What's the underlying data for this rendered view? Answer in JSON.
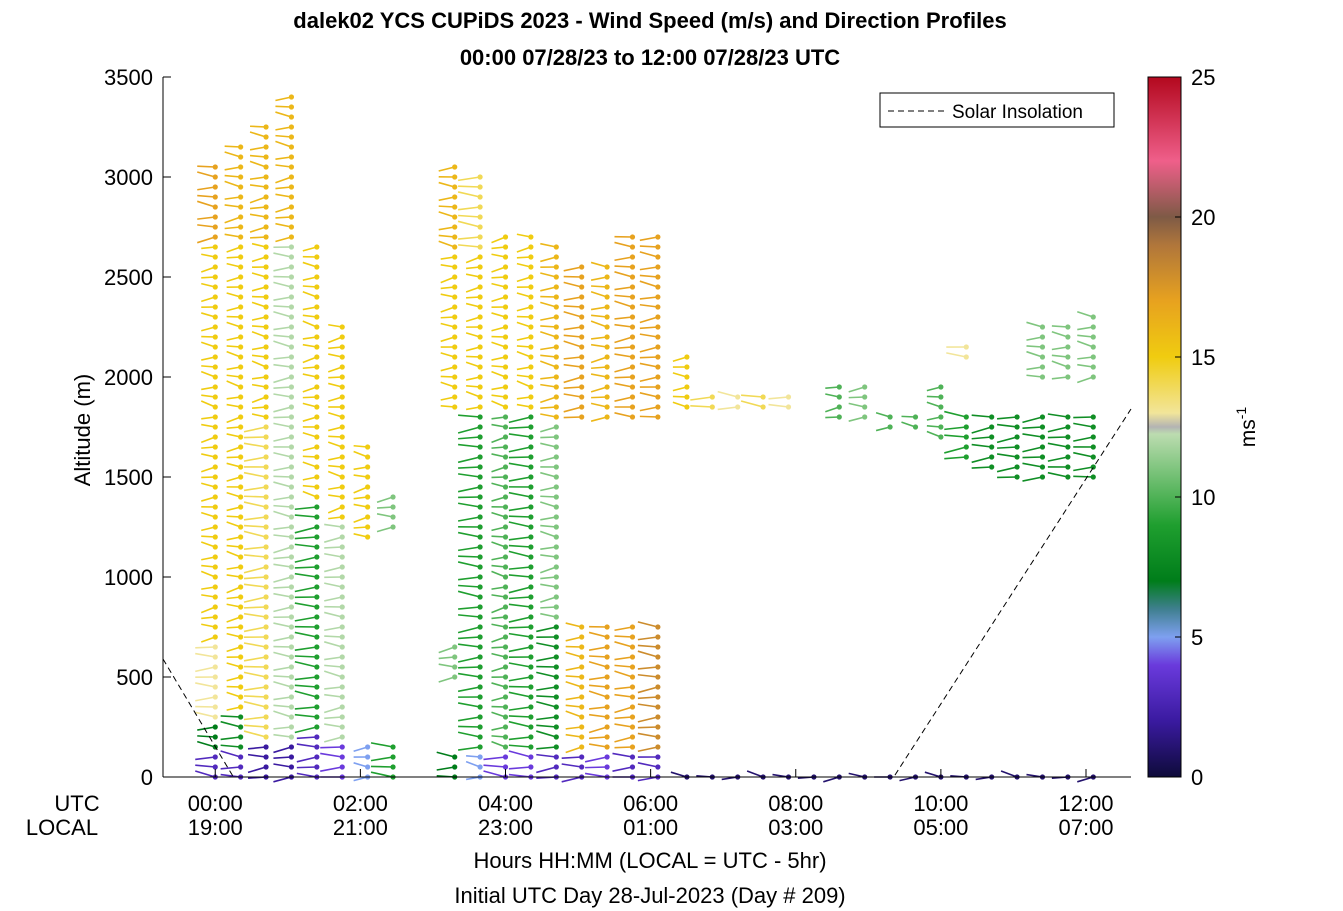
{
  "chart_data": {
    "type": "scatter",
    "title": "dalek02 YCS CUPiDS 2023 - Wind Speed (m/s) and Direction Profiles",
    "subtitle": "00:00 07/28/23 to 12:00 07/28/23  UTC",
    "ylabel": "Altitude (m)",
    "xlabel": "Hours HH:MM  (LOCAL = UTC - 5hr)",
    "xlabel2": "Initial UTC Day 28-Jul-2023 (Day # 209)",
    "ylim": [
      0,
      3500
    ],
    "xlim_hours": [
      -0.72,
      12.62
    ],
    "yticks": [
      0,
      500,
      1000,
      1500,
      2000,
      2500,
      3000,
      3500
    ],
    "xtick_hours": [
      0,
      2,
      4,
      6,
      8,
      10,
      12
    ],
    "xtick_labels_utc": [
      "00:00",
      "02:00",
      "04:00",
      "06:00",
      "08:00",
      "10:00",
      "12:00"
    ],
    "xtick_labels_local": [
      "19:00",
      "21:00",
      "23:00",
      "01:00",
      "03:00",
      "05:00",
      "07:00"
    ],
    "row_label_utc": "UTC",
    "row_label_local": "LOCAL",
    "legend": {
      "entry": "Solar Insolation",
      "placement": "top-right"
    },
    "colorbar": {
      "label": "ms",
      "label_exp": "-1",
      "range": [
        0,
        25
      ],
      "ticks": [
        0,
        5,
        10,
        15,
        20,
        25
      ]
    },
    "solar_insolation_line": [
      {
        "x": -0.72,
        "y": 590
      },
      {
        "x": 0.25,
        "y": 0
      },
      {
        "x": 9.35,
        "y": 0
      },
      {
        "x": 12.62,
        "y": 1840
      }
    ],
    "profiles": [
      {
        "x": 0.0,
        "segments": [
          {
            "h0": 0,
            "h1": 150,
            "speed": 3
          },
          {
            "h0": 150,
            "h1": 300,
            "speed": 7
          },
          {
            "h0": 300,
            "h1": 700,
            "speed": 13
          },
          {
            "h0": 700,
            "h1": 2700,
            "speed": 15
          },
          {
            "h0": 2700,
            "h1": 3100,
            "speed": 17
          }
        ]
      },
      {
        "x": 0.35,
        "segments": [
          {
            "h0": 0,
            "h1": 150,
            "speed": 3
          },
          {
            "h0": 150,
            "h1": 350,
            "speed": 8
          },
          {
            "h0": 350,
            "h1": 2700,
            "speed": 15
          },
          {
            "h0": 2700,
            "h1": 3200,
            "speed": 16
          }
        ]
      },
      {
        "x": 0.7,
        "segments": [
          {
            "h0": 0,
            "h1": 200,
            "speed": 2
          },
          {
            "h0": 200,
            "h1": 1800,
            "speed": 14
          },
          {
            "h0": 1800,
            "h1": 2700,
            "speed": 15
          },
          {
            "h0": 2700,
            "h1": 3300,
            "speed": 16
          }
        ]
      },
      {
        "x": 1.05,
        "segments": [
          {
            "h0": 0,
            "h1": 200,
            "speed": 2
          },
          {
            "h0": 200,
            "h1": 2700,
            "speed": 12
          },
          {
            "h0": 2700,
            "h1": 3450,
            "speed": 16
          }
        ]
      },
      {
        "x": 1.4,
        "segments": [
          {
            "h0": 0,
            "h1": 250,
            "speed": 3
          },
          {
            "h0": 250,
            "h1": 1400,
            "speed": 9
          },
          {
            "h0": 1400,
            "h1": 2700,
            "speed": 15
          }
        ]
      },
      {
        "x": 1.75,
        "segments": [
          {
            "h0": 0,
            "h1": 200,
            "speed": 4
          },
          {
            "h0": 200,
            "h1": 1300,
            "speed": 12
          },
          {
            "h0": 1300,
            "h1": 2300,
            "speed": 15
          }
        ]
      },
      {
        "x": 2.1,
        "segments": [
          {
            "h0": 0,
            "h1": 200,
            "speed": 5
          },
          {
            "h0": 1200,
            "h1": 1700,
            "speed": 15
          }
        ]
      },
      {
        "x": 2.45,
        "segments": [
          {
            "h0": 0,
            "h1": 200,
            "speed": 9
          },
          {
            "h0": 1250,
            "h1": 1450,
            "speed": 11
          }
        ]
      },
      {
        "x": 3.3,
        "segments": [
          {
            "h0": 0,
            "h1": 150,
            "speed": 7
          },
          {
            "h0": 500,
            "h1": 700,
            "speed": 11
          },
          {
            "h0": 1850,
            "h1": 2650,
            "speed": 15
          },
          {
            "h0": 2650,
            "h1": 3100,
            "speed": 16
          }
        ]
      },
      {
        "x": 3.65,
        "segments": [
          {
            "h0": 0,
            "h1": 150,
            "speed": 5
          },
          {
            "h0": 150,
            "h1": 1850,
            "speed": 9
          },
          {
            "h0": 1850,
            "h1": 2650,
            "speed": 15
          },
          {
            "h0": 2650,
            "h1": 3050,
            "speed": 14
          }
        ]
      },
      {
        "x": 4.0,
        "segments": [
          {
            "h0": 0,
            "h1": 150,
            "speed": 4
          },
          {
            "h0": 150,
            "h1": 1850,
            "speed": 10
          },
          {
            "h0": 1850,
            "h1": 2750,
            "speed": 15
          }
        ]
      },
      {
        "x": 4.35,
        "segments": [
          {
            "h0": 0,
            "h1": 150,
            "speed": 4
          },
          {
            "h0": 150,
            "h1": 1850,
            "speed": 9
          },
          {
            "h0": 1850,
            "h1": 2750,
            "speed": 15
          }
        ]
      },
      {
        "x": 4.7,
        "segments": [
          {
            "h0": 0,
            "h1": 150,
            "speed": 3
          },
          {
            "h0": 150,
            "h1": 800,
            "speed": 8
          },
          {
            "h0": 800,
            "h1": 1800,
            "speed": 11
          },
          {
            "h0": 1800,
            "h1": 2700,
            "speed": 16
          }
        ]
      },
      {
        "x": 5.05,
        "segments": [
          {
            "h0": 0,
            "h1": 150,
            "speed": 3
          },
          {
            "h0": 150,
            "h1": 800,
            "speed": 16
          },
          {
            "h0": 1800,
            "h1": 2600,
            "speed": 17
          }
        ]
      },
      {
        "x": 5.4,
        "segments": [
          {
            "h0": 0,
            "h1": 150,
            "speed": 4
          },
          {
            "h0": 150,
            "h1": 800,
            "speed": 17
          },
          {
            "h0": 1800,
            "h1": 2600,
            "speed": 16
          }
        ]
      },
      {
        "x": 5.75,
        "segments": [
          {
            "h0": 0,
            "h1": 150,
            "speed": 3
          },
          {
            "h0": 150,
            "h1": 800,
            "speed": 17
          },
          {
            "h0": 1800,
            "h1": 2750,
            "speed": 17
          }
        ]
      },
      {
        "x": 6.1,
        "segments": [
          {
            "h0": 0,
            "h1": 150,
            "speed": 3
          },
          {
            "h0": 150,
            "h1": 800,
            "speed": 18
          },
          {
            "h0": 1800,
            "h1": 2750,
            "speed": 17
          }
        ]
      },
      {
        "x": 6.5,
        "segments": [
          {
            "h0": 0,
            "h1": 50,
            "speed": 1
          },
          {
            "h0": 1850,
            "h1": 2150,
            "speed": 15
          }
        ]
      },
      {
        "x": 6.85,
        "segments": [
          {
            "h0": 0,
            "h1": 50,
            "speed": 1
          },
          {
            "h0": 1850,
            "h1": 1950,
            "speed": 14
          }
        ]
      },
      {
        "x": 7.2,
        "segments": [
          {
            "h0": 0,
            "h1": 50,
            "speed": 1
          },
          {
            "h0": 1850,
            "h1": 1950,
            "speed": 13
          }
        ]
      },
      {
        "x": 7.55,
        "segments": [
          {
            "h0": 0,
            "h1": 50,
            "speed": 1
          },
          {
            "h0": 1850,
            "h1": 1950,
            "speed": 14
          }
        ]
      },
      {
        "x": 7.9,
        "segments": [
          {
            "h0": 0,
            "h1": 50,
            "speed": 1
          },
          {
            "h0": 1850,
            "h1": 1950,
            "speed": 13
          }
        ]
      },
      {
        "x": 8.25,
        "segments": [
          {
            "h0": 0,
            "h1": 50,
            "speed": 1
          }
        ]
      },
      {
        "x": 8.6,
        "segments": [
          {
            "h0": 0,
            "h1": 50,
            "speed": 1
          },
          {
            "h0": 1800,
            "h1": 2000,
            "speed": 10
          }
        ]
      },
      {
        "x": 8.95,
        "segments": [
          {
            "h0": 0,
            "h1": 50,
            "speed": 1
          },
          {
            "h0": 1800,
            "h1": 2000,
            "speed": 11
          }
        ]
      },
      {
        "x": 9.3,
        "segments": [
          {
            "h0": 0,
            "h1": 50,
            "speed": 1
          },
          {
            "h0": 1750,
            "h1": 1850,
            "speed": 10
          }
        ]
      },
      {
        "x": 9.65,
        "segments": [
          {
            "h0": 0,
            "h1": 50,
            "speed": 1
          },
          {
            "h0": 1750,
            "h1": 1850,
            "speed": 10
          }
        ]
      },
      {
        "x": 10.0,
        "segments": [
          {
            "h0": 0,
            "h1": 50,
            "speed": 1
          },
          {
            "h0": 1700,
            "h1": 2000,
            "speed": 10
          }
        ]
      },
      {
        "x": 10.35,
        "segments": [
          {
            "h0": 0,
            "h1": 50,
            "speed": 1
          },
          {
            "h0": 1600,
            "h1": 1850,
            "speed": 9
          },
          {
            "h0": 2100,
            "h1": 2200,
            "speed": 13
          }
        ]
      },
      {
        "x": 10.7,
        "segments": [
          {
            "h0": 0,
            "h1": 50,
            "speed": 1
          },
          {
            "h0": 1550,
            "h1": 1850,
            "speed": 8
          }
        ]
      },
      {
        "x": 11.05,
        "segments": [
          {
            "h0": 0,
            "h1": 50,
            "speed": 1
          },
          {
            "h0": 1500,
            "h1": 1850,
            "speed": 8
          }
        ]
      },
      {
        "x": 11.4,
        "segments": [
          {
            "h0": 0,
            "h1": 50,
            "speed": 1
          },
          {
            "h0": 1500,
            "h1": 1850,
            "speed": 8
          },
          {
            "h0": 2000,
            "h1": 2300,
            "speed": 11
          }
        ]
      },
      {
        "x": 11.75,
        "segments": [
          {
            "h0": 0,
            "h1": 50,
            "speed": 1
          },
          {
            "h0": 1500,
            "h1": 1850,
            "speed": 8
          },
          {
            "h0": 2000,
            "h1": 2300,
            "speed": 11
          }
        ]
      },
      {
        "x": 12.1,
        "segments": [
          {
            "h0": 0,
            "h1": 50,
            "speed": 1
          },
          {
            "h0": 1500,
            "h1": 1850,
            "speed": 8
          },
          {
            "h0": 2000,
            "h1": 2350,
            "speed": 11
          }
        ]
      }
    ]
  }
}
